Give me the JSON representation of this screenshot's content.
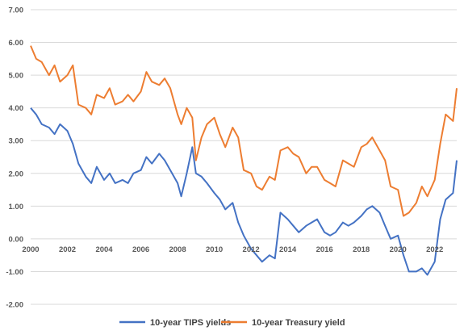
{
  "chart_data": {
    "type": "line",
    "title": "",
    "xlabel": "",
    "ylabel": "",
    "xlim": [
      2000,
      2023.2
    ],
    "ylim": [
      -2.0,
      7.0
    ],
    "grid": true,
    "legend_position": "bottom",
    "y_tick_labels": [
      "-2.00",
      "-1.00",
      "0.00",
      "1.00",
      "2.00",
      "3.00",
      "4.00",
      "5.00",
      "6.00",
      "7.00"
    ],
    "x_tick_labels": [
      "2000",
      "2002",
      "2004",
      "2006",
      "2008",
      "2010",
      "2012",
      "2014",
      "2016",
      "2018",
      "2020",
      "2022"
    ],
    "series": [
      {
        "name": "10-year TIPS yields",
        "color": "#4472c4",
        "x": [
          2000.0,
          2000.3,
          2000.6,
          2001.0,
          2001.3,
          2001.6,
          2002.0,
          2002.3,
          2002.6,
          2003.0,
          2003.3,
          2003.6,
          2004.0,
          2004.3,
          2004.6,
          2005.0,
          2005.3,
          2005.6,
          2006.0,
          2006.3,
          2006.6,
          2007.0,
          2007.3,
          2007.6,
          2008.0,
          2008.2,
          2008.5,
          2008.8,
          2009.0,
          2009.3,
          2009.6,
          2010.0,
          2010.3,
          2010.6,
          2011.0,
          2011.3,
          2011.6,
          2012.0,
          2012.3,
          2012.6,
          2013.0,
          2013.3,
          2013.6,
          2014.0,
          2014.3,
          2014.6,
          2015.0,
          2015.3,
          2015.6,
          2016.0,
          2016.3,
          2016.6,
          2017.0,
          2017.3,
          2017.6,
          2018.0,
          2018.3,
          2018.6,
          2019.0,
          2019.3,
          2019.6,
          2020.0,
          2020.3,
          2020.6,
          2021.0,
          2021.3,
          2021.6,
          2022.0,
          2022.3,
          2022.6,
          2023.0,
          2023.2
        ],
        "y": [
          4.0,
          3.8,
          3.5,
          3.4,
          3.2,
          3.5,
          3.3,
          2.9,
          2.3,
          1.9,
          1.7,
          2.2,
          1.8,
          2.0,
          1.7,
          1.8,
          1.7,
          2.0,
          2.1,
          2.5,
          2.3,
          2.6,
          2.4,
          2.1,
          1.7,
          1.3,
          2.0,
          2.8,
          2.0,
          1.9,
          1.7,
          1.4,
          1.2,
          0.9,
          1.1,
          0.5,
          0.1,
          -0.3,
          -0.5,
          -0.7,
          -0.5,
          -0.6,
          0.8,
          0.6,
          0.4,
          0.2,
          0.4,
          0.5,
          0.6,
          0.2,
          0.1,
          0.2,
          0.5,
          0.4,
          0.5,
          0.7,
          0.9,
          1.0,
          0.8,
          0.4,
          0.0,
          0.1,
          -0.5,
          -1.0,
          -1.0,
          -0.9,
          -1.1,
          -0.7,
          0.6,
          1.2,
          1.4,
          2.4
        ]
      },
      {
        "name": "10-year Treasury yield",
        "color": "#ed7d31",
        "x": [
          2000.0,
          2000.3,
          2000.6,
          2001.0,
          2001.3,
          2001.6,
          2002.0,
          2002.3,
          2002.6,
          2003.0,
          2003.3,
          2003.6,
          2004.0,
          2004.3,
          2004.6,
          2005.0,
          2005.3,
          2005.6,
          2006.0,
          2006.3,
          2006.6,
          2007.0,
          2007.3,
          2007.6,
          2008.0,
          2008.2,
          2008.5,
          2008.8,
          2009.0,
          2009.3,
          2009.6,
          2010.0,
          2010.3,
          2010.6,
          2011.0,
          2011.3,
          2011.6,
          2012.0,
          2012.3,
          2012.6,
          2013.0,
          2013.3,
          2013.6,
          2014.0,
          2014.3,
          2014.6,
          2015.0,
          2015.3,
          2015.6,
          2016.0,
          2016.3,
          2016.6,
          2017.0,
          2017.3,
          2017.6,
          2018.0,
          2018.3,
          2018.6,
          2019.0,
          2019.3,
          2019.6,
          2020.0,
          2020.3,
          2020.6,
          2021.0,
          2021.3,
          2021.6,
          2022.0,
          2022.3,
          2022.6,
          2023.0,
          2023.2
        ],
        "y": [
          5.9,
          5.5,
          5.4,
          5.0,
          5.3,
          4.8,
          5.0,
          5.3,
          4.1,
          4.0,
          3.8,
          4.4,
          4.3,
          4.6,
          4.1,
          4.2,
          4.4,
          4.2,
          4.5,
          5.1,
          4.8,
          4.7,
          4.9,
          4.6,
          3.8,
          3.5,
          4.0,
          3.7,
          2.4,
          3.1,
          3.5,
          3.7,
          3.2,
          2.8,
          3.4,
          3.1,
          2.1,
          2.0,
          1.6,
          1.5,
          1.9,
          1.8,
          2.7,
          2.8,
          2.6,
          2.5,
          2.0,
          2.2,
          2.2,
          1.8,
          1.7,
          1.6,
          2.4,
          2.3,
          2.2,
          2.8,
          2.9,
          3.1,
          2.7,
          2.4,
          1.6,
          1.5,
          0.7,
          0.8,
          1.1,
          1.6,
          1.3,
          1.8,
          2.9,
          3.8,
          3.6,
          4.6
        ]
      }
    ]
  }
}
